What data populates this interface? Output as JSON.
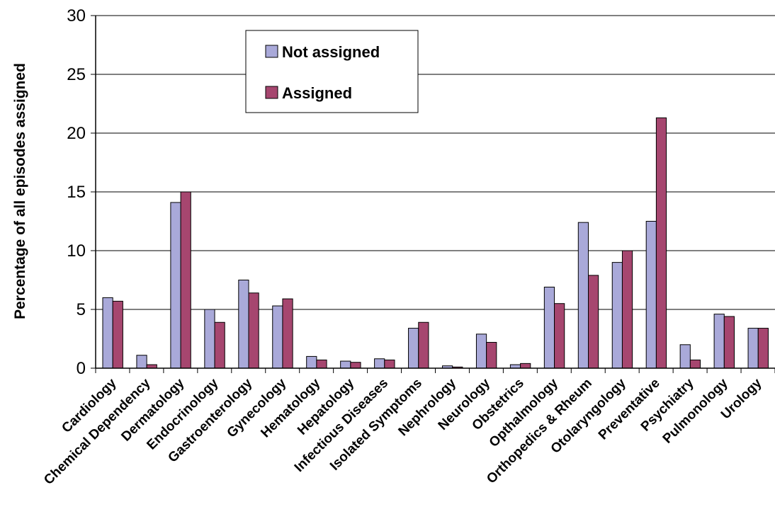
{
  "chart_data": {
    "type": "bar",
    "title": "",
    "xlabel": "",
    "ylabel": "Percentage of all episodes assigned",
    "ylim": [
      0,
      30
    ],
    "yticks": [
      "0",
      "5",
      "10",
      "15",
      "20",
      "25",
      "30"
    ],
    "grid": true,
    "legend_position": "top-center",
    "categories": [
      "Cardiology",
      "Chemical Dependency",
      "Dermatology",
      "Endocrinology",
      "Gastroenterology",
      "Gynecology",
      "Hematology",
      "Hepatology",
      "Infectious Diseases",
      "Isolated Symptoms",
      "Nephrology",
      "Neurology",
      "Obstetrics",
      "Opthalmology",
      "Orthopedics & Rheum",
      "Otolaryngology",
      "Preventative",
      "Psychiatry",
      "Pulmonology",
      "Urology"
    ],
    "series": [
      {
        "name": "Not assigned",
        "color": "#a9a9d9",
        "values": [
          6.0,
          1.1,
          14.1,
          5.0,
          7.5,
          5.3,
          1.0,
          0.6,
          0.8,
          3.4,
          0.2,
          2.9,
          0.3,
          6.9,
          12.4,
          9.0,
          12.5,
          2.0,
          4.6,
          3.4
        ]
      },
      {
        "name": "Assigned",
        "color": "#a6466f",
        "values": [
          5.7,
          0.3,
          15.0,
          3.9,
          6.4,
          5.9,
          0.7,
          0.5,
          0.7,
          3.9,
          0.1,
          2.2,
          0.4,
          5.5,
          7.9,
          10.0,
          21.3,
          0.7,
          4.4,
          3.4
        ]
      }
    ]
  }
}
